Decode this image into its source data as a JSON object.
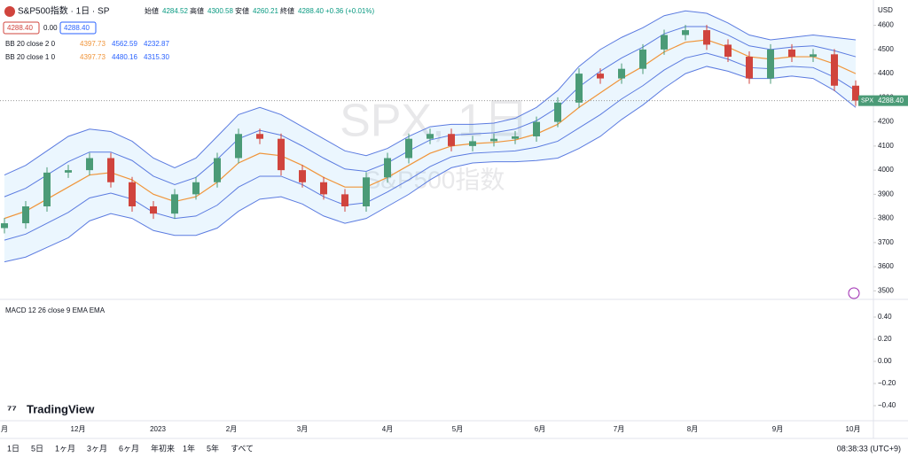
{
  "header": {
    "symbol": "S&P500指数 · 1日 · SP",
    "ohlc": [
      {
        "label": "始値",
        "value": "4284.52"
      },
      {
        "label": "高値",
        "value": "4300.58"
      },
      {
        "label": "安値",
        "value": "4260.21"
      },
      {
        "label": "終値",
        "value": "4288.40"
      }
    ],
    "change": "+0.36 (+0.01%)",
    "sell": "4288.40",
    "spread": "0.00",
    "buy": "4288.40"
  },
  "indicators": [
    {
      "name": "BB 20 close 2 0",
      "values": [
        "4397.73",
        "4562.59",
        "4232.87"
      ]
    },
    {
      "name": "BB 20 close 1 0",
      "values": [
        "4397.73",
        "4480.16",
        "4315.30"
      ]
    }
  ],
  "watermark": {
    "line1": "SPX, 1日",
    "line2": "S&P500指数"
  },
  "currency": "USD",
  "last_tag": {
    "symbol": "SPX",
    "price": "4288.40"
  },
  "macd": {
    "label": "MACD 12 26 close 9 EMA EMA",
    "ylim": [
      -0.5,
      0.5
    ],
    "yticks": [
      {
        "value": 0.4,
        "label": "0.40"
      },
      {
        "value": 0.2,
        "label": "0.20"
      },
      {
        "value": 0,
        "label": "0.00"
      },
      {
        "value": -0.2,
        "label": "−0.20"
      },
      {
        "value": -0.4,
        "label": "−0.40"
      }
    ]
  },
  "chart_data": {
    "type": "candlestick",
    "ylim": [
      3450,
      4650
    ],
    "yticks": [
      3500,
      3600,
      3700,
      3800,
      3900,
      4000,
      4100,
      4200,
      4300,
      4400,
      4500,
      4600
    ],
    "values": [
      3780,
      3850,
      3990,
      4000,
      4050,
      3950,
      3850,
      3820,
      3900,
      3950,
      4050,
      4150,
      4130,
      4000,
      3950,
      3900,
      3850,
      3970,
      4050,
      4130,
      4150,
      4100,
      4120,
      4130,
      4140,
      4200,
      4280,
      4400,
      4380,
      4420,
      4500,
      4560,
      4580,
      4520,
      4470,
      4380,
      4500,
      4470,
      4480,
      4350,
      4288
    ],
    "bb_mid": [
      3800,
      3830,
      3880,
      3930,
      3980,
      3990,
      3960,
      3900,
      3870,
      3890,
      3950,
      4030,
      4070,
      4060,
      4020,
      3970,
      3930,
      3930,
      3970,
      4020,
      4070,
      4100,
      4110,
      4115,
      4125,
      4150,
      4190,
      4260,
      4320,
      4380,
      4430,
      4490,
      4530,
      4540,
      4510,
      4470,
      4460,
      4470,
      4470,
      4440,
      4400
    ],
    "bb_std": [
      90,
      95,
      100,
      105,
      95,
      85,
      80,
      75,
      70,
      80,
      95,
      100,
      95,
      85,
      80,
      80,
      75,
      65,
      60,
      60,
      55,
      45,
      40,
      40,
      45,
      55,
      70,
      85,
      90,
      85,
      80,
      75,
      65,
      55,
      50,
      45,
      40,
      40,
      45,
      55,
      70
    ],
    "time_labels": [
      "月",
      "12月",
      "2023",
      "2月",
      "3月",
      "4月",
      "5月",
      "6月",
      "7月",
      "8月",
      "9月",
      "10月"
    ]
  },
  "logo": "TradingView",
  "ranges": [
    "1日",
    "5日",
    "1ヶ月",
    "3ヶ月",
    "6ヶ月",
    "年初来",
    "1年",
    "5年",
    "すべて"
  ],
  "clock": "08:38:33 (UTC+9)"
}
